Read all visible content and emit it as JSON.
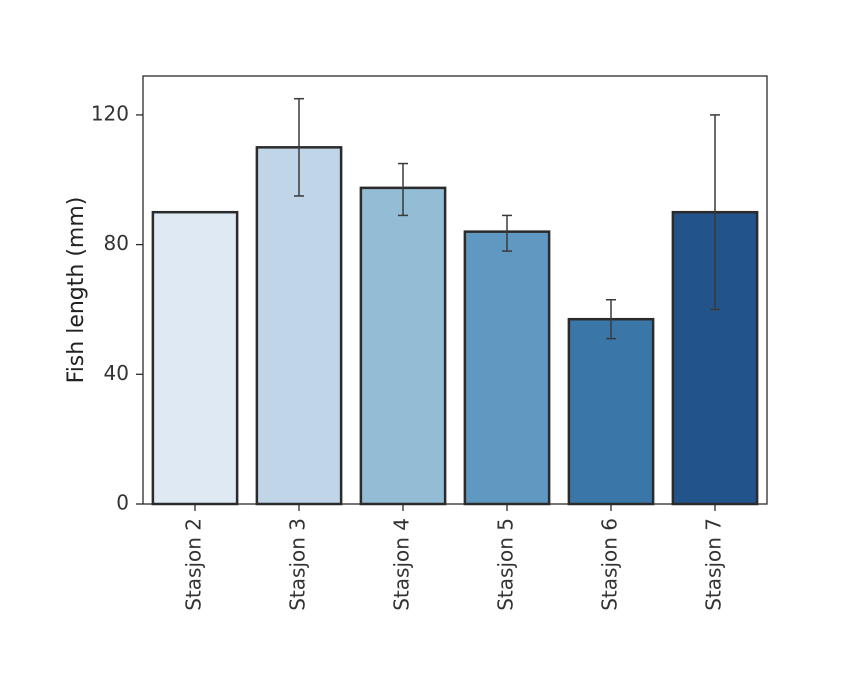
{
  "chart_data": {
    "type": "bar",
    "ylabel": "Fish length (mm)",
    "xlabel": "",
    "title": "",
    "ylim": [
      0,
      132
    ],
    "yticks": [
      0,
      40,
      80,
      120
    ],
    "categories": [
      "Stasjon 2",
      "Stasjon 3",
      "Stasjon 4",
      "Stasjon 5",
      "Stasjon 6",
      "Stasjon 7"
    ],
    "values": [
      90,
      110,
      97.5,
      84,
      57,
      90
    ],
    "error_low": [
      null,
      95,
      89,
      78,
      51,
      60
    ],
    "error_high": [
      null,
      125,
      105,
      89,
      63,
      120
    ],
    "colors": [
      "#dfe9f4",
      "#c0d5e8",
      "#93bcd5",
      "#5f98c0",
      "#3b76a8",
      "#22538a"
    ],
    "grid": false,
    "legend": "none"
  }
}
